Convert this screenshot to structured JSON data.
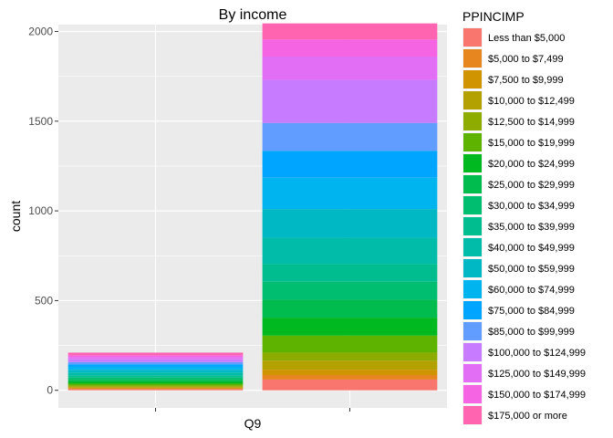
{
  "chart_data": {
    "type": "bar",
    "stacked": true,
    "title": "By income",
    "xlabel": "Q9",
    "ylabel": "count",
    "categories": [
      "",
      ""
    ],
    "ylim": [
      -98,
      2038
    ],
    "yticks": [
      0,
      500,
      1000,
      1500,
      2000
    ],
    "grid": true,
    "legend": {
      "title": "PPINCIMP",
      "position": "right"
    },
    "series": [
      {
        "name": "Less than $5,000",
        "color": "#F8766D",
        "values": [
          7,
          60
        ]
      },
      {
        "name": "$5,000 to $7,499",
        "color": "#E7851E",
        "values": [
          4,
          25
        ]
      },
      {
        "name": "$7,500 to $9,999",
        "color": "#D09400",
        "values": [
          4,
          30
        ]
      },
      {
        "name": "$10,000 to $12,499",
        "color": "#B2A100",
        "values": [
          6,
          50
        ]
      },
      {
        "name": "$12,500 to $14,999",
        "color": "#8EAB00",
        "values": [
          6,
          45
        ]
      },
      {
        "name": "$15,000 to $19,999",
        "color": "#5EB300",
        "values": [
          10,
          95
        ]
      },
      {
        "name": "$20,000 to $24,999",
        "color": "#00B81F",
        "values": [
          10,
          100
        ]
      },
      {
        "name": "$25,000 to $29,999",
        "color": "#00BB4E",
        "values": [
          12,
          100
        ]
      },
      {
        "name": "$30,000 to $34,999",
        "color": "#00BE70",
        "values": [
          12,
          100
        ]
      },
      {
        "name": "$35,000 to $39,999",
        "color": "#00BD8F",
        "values": [
          13,
          100
        ]
      },
      {
        "name": "$40,000 to $49,999",
        "color": "#00BCA8",
        "values": [
          15,
          145
        ]
      },
      {
        "name": "$50,000 to $59,999",
        "color": "#00B8C3",
        "values": [
          15,
          160
        ]
      },
      {
        "name": "$60,000 to $74,999",
        "color": "#00B4EF",
        "values": [
          17,
          175
        ]
      },
      {
        "name": "$75,000 to $84,999",
        "color": "#00A5FF",
        "values": [
          14,
          150
        ]
      },
      {
        "name": "$85,000 to $99,999",
        "color": "#619CFF",
        "values": [
          12,
          155
        ]
      },
      {
        "name": "$100,000 to $124,999",
        "color": "#C77CFF",
        "values": [
          16,
          240
        ]
      },
      {
        "name": "$125,000 to $149,999",
        "color": "#E36EF6",
        "values": [
          12,
          130
        ]
      },
      {
        "name": "$150,000 to $174,999",
        "color": "#F564E3",
        "values": [
          10,
          95
        ]
      },
      {
        "name": "$175,000 or more",
        "color": "#FF64B0",
        "values": [
          15,
          90
        ]
      }
    ]
  }
}
